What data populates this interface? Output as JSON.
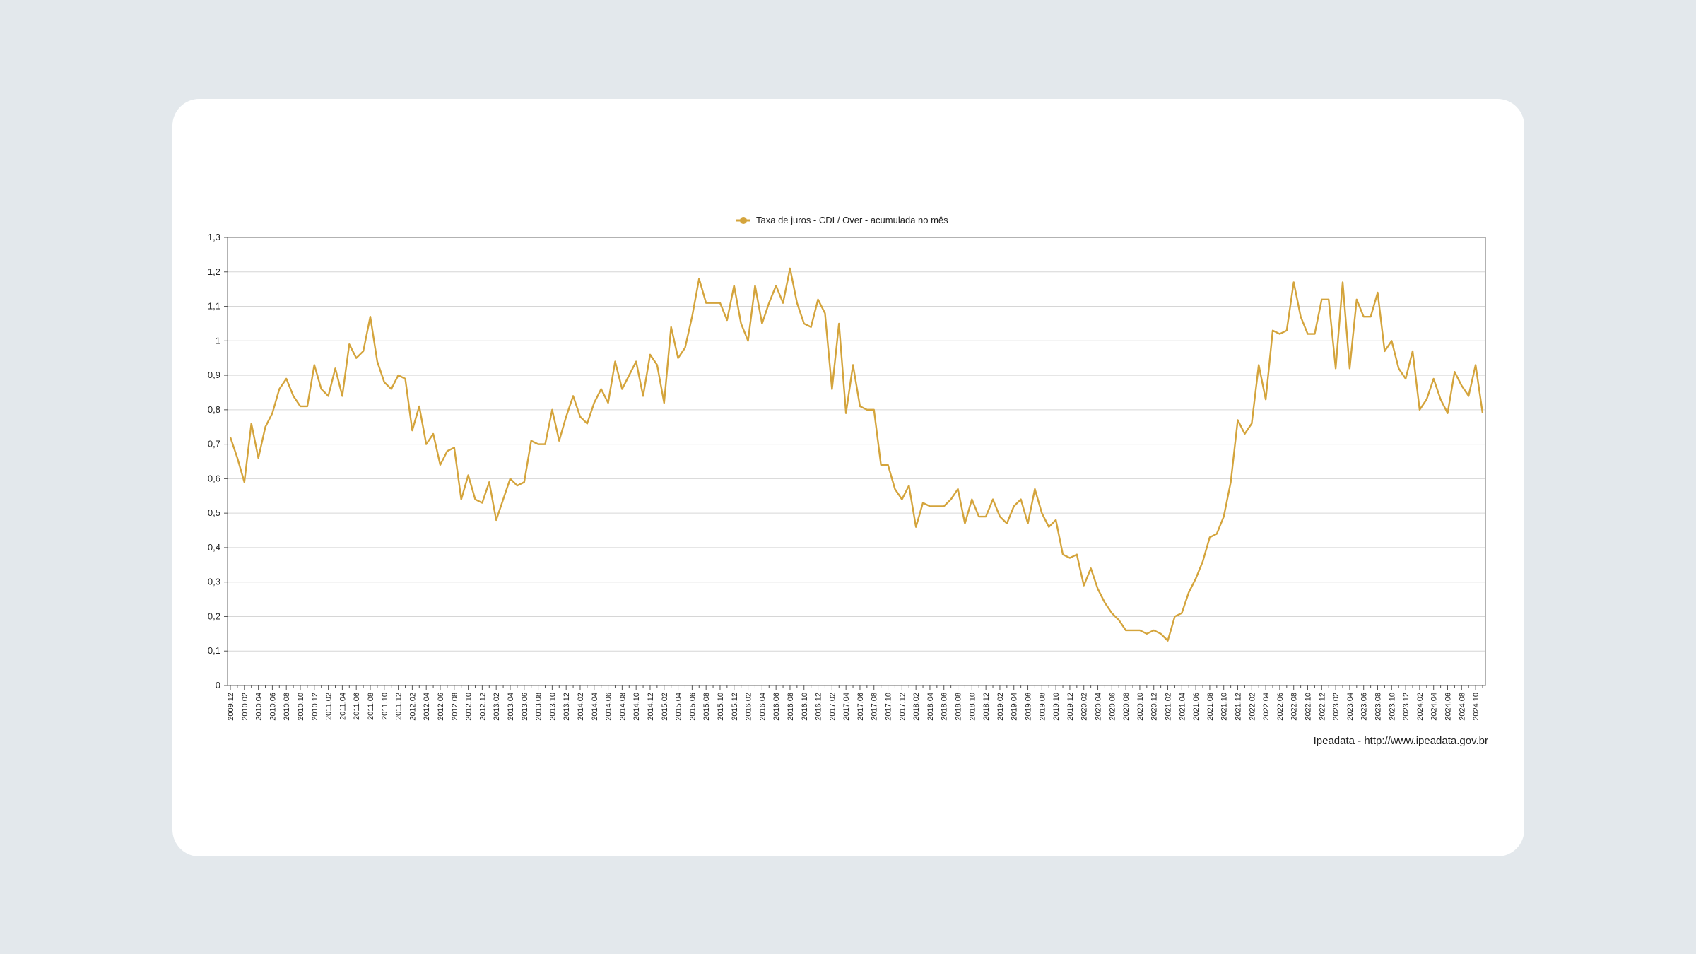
{
  "colors": {
    "series": "#d4a43c",
    "grid": "#d6d6d6",
    "frame": "#999999",
    "page_bg": "#e3e8ec",
    "card_bg": "#ffffff"
  },
  "source_text": "Ipeadata - http://www.ipeadata.gov.br",
  "chart_data": {
    "type": "line",
    "title": "",
    "xlabel": "",
    "ylabel": "",
    "legend": "top-center",
    "grid": true,
    "ylim": [
      0,
      1.3
    ],
    "yticks": [
      "0",
      "0,1",
      "0,2",
      "0,3",
      "0,4",
      "0,5",
      "0,6",
      "0,7",
      "0,8",
      "0,9",
      "1",
      "1,1",
      "1,2",
      "1,3"
    ],
    "x_start": "2009.12",
    "x_tick_every": 2,
    "x": [
      "2009.12",
      "2010.01",
      "2010.02",
      "2010.03",
      "2010.04",
      "2010.05",
      "2010.06",
      "2010.07",
      "2010.08",
      "2010.09",
      "2010.10",
      "2010.11",
      "2010.12",
      "2011.01",
      "2011.02",
      "2011.03",
      "2011.04",
      "2011.05",
      "2011.06",
      "2011.07",
      "2011.08",
      "2011.09",
      "2011.10",
      "2011.11",
      "2011.12",
      "2012.01",
      "2012.02",
      "2012.03",
      "2012.04",
      "2012.05",
      "2012.06",
      "2012.07",
      "2012.08",
      "2012.09",
      "2012.10",
      "2012.11",
      "2012.12",
      "2013.01",
      "2013.02",
      "2013.03",
      "2013.04",
      "2013.05",
      "2013.06",
      "2013.07",
      "2013.08",
      "2013.09",
      "2013.10",
      "2013.11",
      "2013.12",
      "2014.01",
      "2014.02",
      "2014.03",
      "2014.04",
      "2014.05",
      "2014.06",
      "2014.07",
      "2014.08",
      "2014.09",
      "2014.10",
      "2014.11",
      "2014.12",
      "2015.01",
      "2015.02",
      "2015.03",
      "2015.04",
      "2015.05",
      "2015.06",
      "2015.07",
      "2015.08",
      "2015.09",
      "2015.10",
      "2015.11",
      "2015.12",
      "2016.01",
      "2016.02",
      "2016.03",
      "2016.04",
      "2016.05",
      "2016.06",
      "2016.07",
      "2016.08",
      "2016.09",
      "2016.10",
      "2016.11",
      "2016.12",
      "2017.01",
      "2017.02",
      "2017.03",
      "2017.04",
      "2017.05",
      "2017.06",
      "2017.07",
      "2017.08",
      "2017.09",
      "2017.10",
      "2017.11",
      "2017.12",
      "2018.01",
      "2018.02",
      "2018.03",
      "2018.04",
      "2018.05",
      "2018.06",
      "2018.07",
      "2018.08",
      "2018.09",
      "2018.10",
      "2018.11",
      "2018.12",
      "2019.01",
      "2019.02",
      "2019.03",
      "2019.04",
      "2019.05",
      "2019.06",
      "2019.07",
      "2019.08",
      "2019.09",
      "2019.10",
      "2019.11",
      "2019.12",
      "2020.01",
      "2020.02",
      "2020.03",
      "2020.04",
      "2020.05",
      "2020.06",
      "2020.07",
      "2020.08",
      "2020.09",
      "2020.10",
      "2020.11",
      "2020.12",
      "2021.01",
      "2021.02",
      "2021.03",
      "2021.04",
      "2021.05",
      "2021.06",
      "2021.07",
      "2021.08",
      "2021.09",
      "2021.10",
      "2021.11",
      "2021.12",
      "2022.01",
      "2022.02",
      "2022.03",
      "2022.04",
      "2022.05",
      "2022.06",
      "2022.07",
      "2022.08",
      "2022.09",
      "2022.10",
      "2022.11",
      "2022.12",
      "2023.01",
      "2023.02",
      "2023.03",
      "2023.04",
      "2023.05",
      "2023.06",
      "2023.07",
      "2023.08",
      "2023.09",
      "2023.10",
      "2023.11",
      "2023.12",
      "2024.01",
      "2024.02",
      "2024.03",
      "2024.04",
      "2024.05",
      "2024.06",
      "2024.07",
      "2024.08",
      "2024.09",
      "2024.10",
      "2024.11"
    ],
    "series": [
      {
        "name": "Taxa de juros - CDI / Over - acumulada no mês",
        "values": [
          0.72,
          0.66,
          0.59,
          0.76,
          0.66,
          0.75,
          0.79,
          0.86,
          0.89,
          0.84,
          0.81,
          0.81,
          0.93,
          0.86,
          0.84,
          0.92,
          0.84,
          0.99,
          0.95,
          0.97,
          1.07,
          0.94,
          0.88,
          0.86,
          0.9,
          0.89,
          0.74,
          0.81,
          0.7,
          0.73,
          0.64,
          0.68,
          0.69,
          0.54,
          0.61,
          0.54,
          0.53,
          0.59,
          0.48,
          0.54,
          0.6,
          0.58,
          0.59,
          0.71,
          0.7,
          0.7,
          0.8,
          0.71,
          0.78,
          0.84,
          0.78,
          0.76,
          0.82,
          0.86,
          0.82,
          0.94,
          0.86,
          0.9,
          0.94,
          0.84,
          0.96,
          0.93,
          0.82,
          1.04,
          0.95,
          0.98,
          1.07,
          1.18,
          1.11,
          1.11,
          1.11,
          1.06,
          1.16,
          1.05,
          1.0,
          1.16,
          1.05,
          1.11,
          1.16,
          1.11,
          1.21,
          1.11,
          1.05,
          1.04,
          1.12,
          1.08,
          0.86,
          1.05,
          0.79,
          0.93,
          0.81,
          0.8,
          0.8,
          0.64,
          0.64,
          0.57,
          0.54,
          0.58,
          0.46,
          0.53,
          0.52,
          0.52,
          0.52,
          0.54,
          0.57,
          0.47,
          0.54,
          0.49,
          0.49,
          0.54,
          0.49,
          0.47,
          0.52,
          0.54,
          0.47,
          0.57,
          0.5,
          0.46,
          0.48,
          0.38,
          0.37,
          0.38,
          0.29,
          0.34,
          0.28,
          0.24,
          0.21,
          0.19,
          0.16,
          0.16,
          0.16,
          0.15,
          0.16,
          0.15,
          0.13,
          0.2,
          0.21,
          0.27,
          0.31,
          0.36,
          0.43,
          0.44,
          0.49,
          0.59,
          0.77,
          0.73,
          0.76,
          0.93,
          0.83,
          1.03,
          1.02,
          1.03,
          1.17,
          1.07,
          1.02,
          1.02,
          1.12,
          1.12,
          0.92,
          1.17,
          0.92,
          1.12,
          1.07,
          1.07,
          1.14,
          0.97,
          1.0,
          0.92,
          0.89,
          0.97,
          0.8,
          0.83,
          0.89,
          0.83,
          0.79,
          0.91,
          0.87,
          0.84,
          0.93,
          0.79
        ]
      }
    ]
  }
}
